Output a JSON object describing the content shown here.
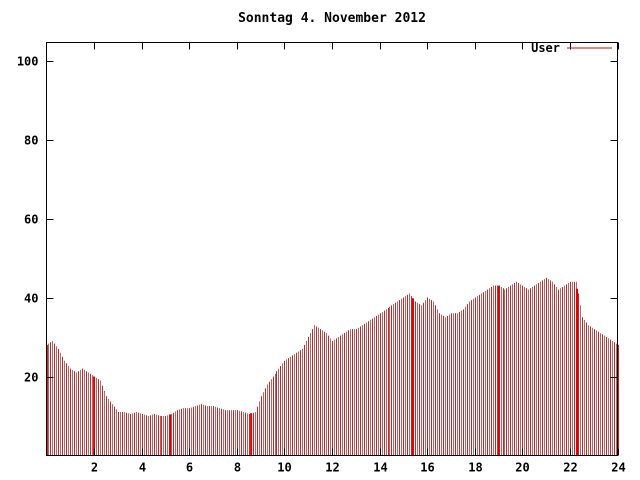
{
  "chart_data": {
    "type": "bar",
    "title": "Sonntag 4. November 2012",
    "xlabel": "",
    "ylabel": "",
    "xlim": [
      0,
      24
    ],
    "ylim": [
      0,
      104
    ],
    "x_ticks": [
      2,
      4,
      6,
      8,
      10,
      12,
      14,
      16,
      18,
      20,
      22,
      24
    ],
    "y_ticks": [
      20,
      40,
      60,
      80,
      100
    ],
    "grid": false,
    "legend_position": "top-right",
    "bar_stripe_colors": [
      "#cc2222",
      "#a96a6a"
    ],
    "solid_spikes": [
      2.0,
      5.2,
      8.6,
      15.4,
      19.0,
      22.3
    ],
    "series": [
      {
        "name": "User",
        "color": "#dd0000",
        "x": [
          0,
          0.25,
          0.5,
          0.75,
          1,
          1.25,
          1.5,
          1.75,
          2,
          2.25,
          2.5,
          2.75,
          3,
          3.25,
          3.5,
          3.75,
          4,
          4.25,
          4.5,
          4.75,
          5,
          5.25,
          5.5,
          5.75,
          6,
          6.25,
          6.5,
          6.75,
          7,
          7.25,
          7.5,
          7.75,
          8,
          8.25,
          8.5,
          8.75,
          9,
          9.25,
          9.5,
          9.75,
          10,
          10.25,
          10.5,
          10.75,
          11,
          11.25,
          11.5,
          11.75,
          12,
          12.25,
          12.5,
          12.75,
          13,
          13.25,
          13.5,
          13.75,
          14,
          14.25,
          14.5,
          14.75,
          15,
          15.25,
          15.5,
          15.75,
          16,
          16.25,
          16.5,
          16.75,
          17,
          17.25,
          17.5,
          17.75,
          18,
          18.25,
          18.5,
          18.75,
          19,
          19.25,
          19.5,
          19.75,
          20,
          20.25,
          20.5,
          20.75,
          21,
          21.25,
          21.5,
          21.75,
          22,
          22.25,
          22.5,
          22.75,
          23,
          23.25,
          23.5,
          23.75,
          24
        ],
        "y": [
          28,
          29,
          27,
          24,
          22,
          21,
          22,
          21,
          20,
          19,
          15,
          13,
          11,
          11,
          10.5,
          11,
          10.5,
          10,
          10.5,
          10,
          10,
          10.5,
          11.5,
          12,
          12,
          12.5,
          13,
          12.5,
          12.5,
          12,
          11.5,
          11.5,
          11.5,
          11,
          10.5,
          11,
          15,
          18,
          20,
          22,
          24,
          25,
          26,
          27,
          30,
          33,
          32,
          31,
          29,
          30,
          31,
          32,
          32,
          33,
          34,
          35,
          36,
          37,
          38,
          39,
          40,
          41,
          39,
          38,
          40,
          39,
          36,
          35,
          36,
          36,
          37,
          39,
          40,
          41,
          42,
          43,
          43,
          42,
          43,
          44,
          43,
          42,
          43,
          44,
          45,
          44,
          42,
          43,
          44,
          44,
          35,
          33,
          32,
          31,
          30,
          29,
          28
        ]
      }
    ]
  }
}
